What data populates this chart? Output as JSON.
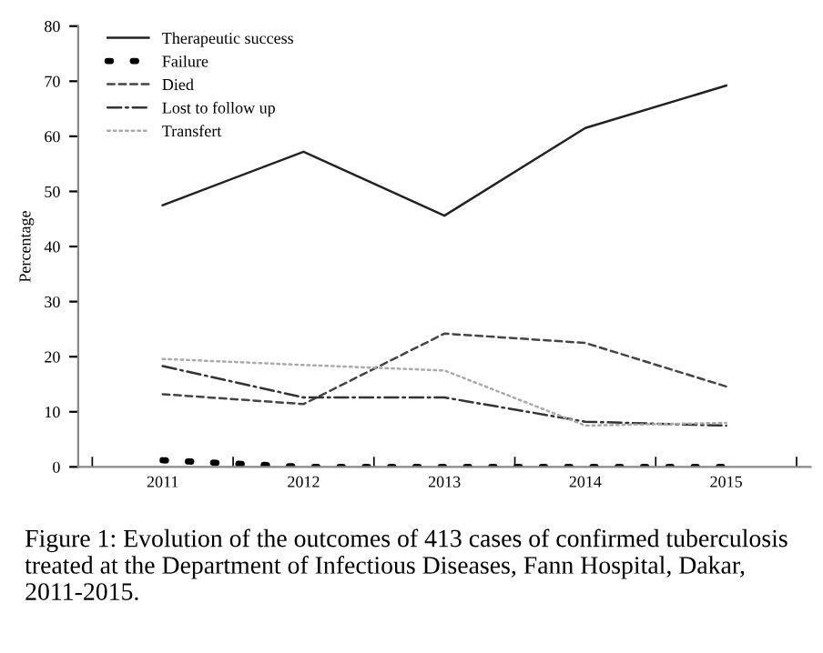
{
  "chart_data": {
    "type": "line",
    "ylabel": "Percentage",
    "categories": [
      "2011",
      "2012",
      "2013",
      "2014",
      "2015"
    ],
    "series": [
      {
        "name": "Therapeutic success",
        "color": "#222222",
        "line_style": "solid",
        "values": [
          47.5,
          57.2,
          45.6,
          61.5,
          69.2
        ]
      },
      {
        "name": "Failure",
        "color": "#000000",
        "line_style": "dotted",
        "values": [
          1.2,
          0,
          0,
          0,
          0
        ]
      },
      {
        "name": "Died",
        "color": "#444444",
        "line_style": "dashed",
        "values": [
          13.2,
          11.4,
          24.2,
          22.5,
          14.6
        ]
      },
      {
        "name": "Lost to follow up",
        "color": "#333333",
        "line_style": "dashdot",
        "values": [
          18.3,
          12.6,
          12.6,
          8.2,
          7.5
        ]
      },
      {
        "name": "Transfert",
        "color": "#aaaaaa",
        "line_style": "dotted",
        "values": [
          19.6,
          18.5,
          17.5,
          7.5,
          8.0
        ]
      }
    ],
    "ylim": [
      0,
      80
    ],
    "yticks": [
      0,
      10,
      20,
      30,
      40,
      50,
      60,
      70,
      80
    ],
    "grid": false,
    "legend": "top left",
    "marker": "none",
    "annotations": [
      "Figure 1: Evolution of the outcomes of 413 cases of confirmed tuberculosis treated at the Department of Infectious Diseases, Fann Hospital, Dakar, 2011-2015."
    ]
  }
}
